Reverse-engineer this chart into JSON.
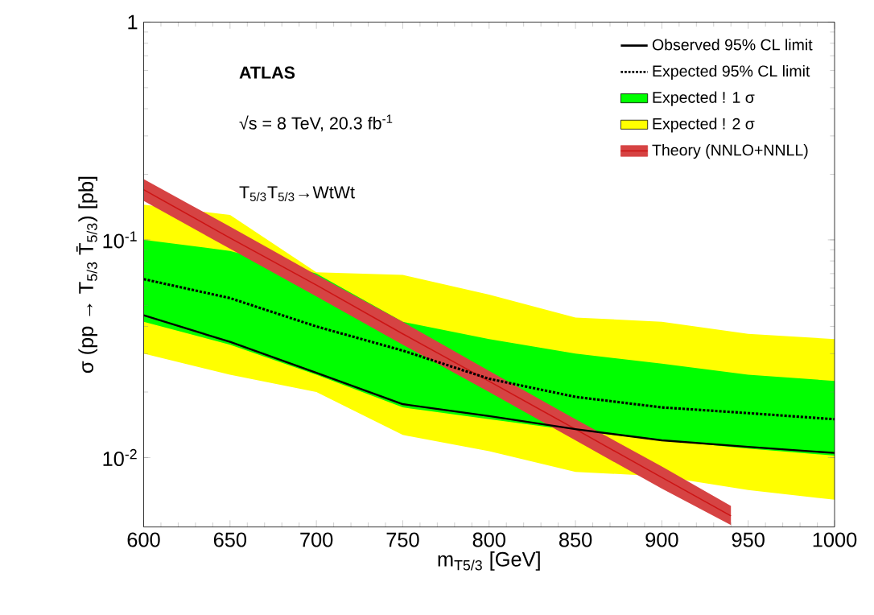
{
  "chart_data": {
    "type": "line",
    "xlabel": "m$_{T5/3}$ [GeV]",
    "ylabel": "σ (pp → T$_{5/3}$ T̄$_{5/3}$) [pb]",
    "annotations": [
      "**ATLAS**",
      "√s = 8 TeV, 20.3 fb$^{-1}$",
      "T$_{5/3}$T$_{5/3}$→WtWt"
    ],
    "x": [
      600,
      650,
      700,
      750,
      800,
      850,
      900,
      950,
      1000
    ],
    "series": [
      {
        "name": "Observed 95% CL limit",
        "line_style": "solid",
        "color": "#000000",
        "values": [
          0.045,
          0.034,
          0.0245,
          0.0176,
          0.0155,
          0.0135,
          0.012,
          0.0112,
          0.0105
        ]
      },
      {
        "name": "Expected 95% CL limit",
        "line_style": "dotted",
        "color": "#000000",
        "values": [
          0.066,
          0.054,
          0.04,
          0.031,
          0.023,
          0.019,
          0.017,
          0.016,
          0.015
        ]
      },
      {
        "name": "Expected ! 1 σ",
        "color": "#00ff00",
        "values": [
          null,
          null,
          null,
          null,
          null,
          null,
          null,
          null,
          null
        ],
        "lower": [
          0.042,
          0.033,
          0.024,
          0.017,
          0.015,
          0.0133,
          0.012,
          0.011,
          0.0102
        ],
        "upper": [
          0.1,
          0.089,
          0.07,
          0.042,
          0.035,
          0.03,
          0.027,
          0.024,
          0.0225
        ]
      },
      {
        "name": "Expected ! 2 σ",
        "color": "#ffff00",
        "values": [
          null,
          null,
          null,
          null,
          null,
          null,
          null,
          null,
          null
        ],
        "lower": [
          0.03,
          0.024,
          0.02,
          0.0127,
          0.0107,
          0.0086,
          0.0082,
          0.0071,
          0.0064
        ],
        "upper": [
          0.145,
          0.13,
          0.071,
          0.069,
          0.056,
          0.044,
          0.042,
          0.037,
          0.035
        ]
      },
      {
        "name": "Theory (NNLO+NNLL)",
        "color": "#cc1414",
        "x": [
          600,
          650,
          700,
          750,
          800,
          850,
          900,
          940
        ],
        "values": [
          0.17,
          0.102,
          0.062,
          0.037,
          0.0224,
          0.0135,
          0.0081,
          0.0054
        ],
        "lower": [
          0.151,
          0.091,
          0.055,
          0.033,
          0.02,
          0.012,
          0.0072,
          0.0049
        ],
        "upper": [
          0.19,
          0.115,
          0.069,
          0.042,
          0.025,
          0.015,
          0.0091,
          0.006
        ]
      }
    ],
    "log": "y",
    "xlim": [
      600,
      1000
    ],
    "ylim": [
      0.0048,
      1
    ],
    "xticks": [
      600,
      650,
      700,
      750,
      800,
      850,
      900,
      950,
      1000
    ],
    "yticks": [
      {
        "value": 0.01,
        "label": "10$^{-2}$"
      },
      {
        "value": 0.1,
        "label": "10$^{-1}$"
      },
      1
    ],
    "legend": "top right",
    "grid": false,
    "marker": "none"
  }
}
